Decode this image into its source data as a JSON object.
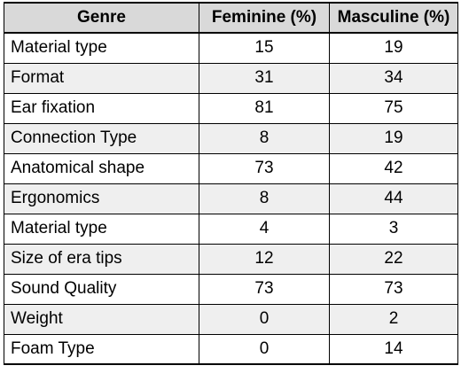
{
  "chart_data": {
    "type": "table",
    "columns": [
      "Genre",
      "Feminine (%)",
      "Masculine (%)"
    ],
    "rows": [
      {
        "label": "Material type",
        "feminine": 15,
        "masculine": 19
      },
      {
        "label": "Format",
        "feminine": 31,
        "masculine": 34
      },
      {
        "label": "Ear fixation",
        "feminine": 81,
        "masculine": 75
      },
      {
        "label": "Connection Type",
        "feminine": 8,
        "masculine": 19
      },
      {
        "label": "Anatomical shape",
        "feminine": 73,
        "masculine": 42
      },
      {
        "label": "Ergonomics",
        "feminine": 8,
        "masculine": 44
      },
      {
        "label": "Material type",
        "feminine": 4,
        "masculine": 3
      },
      {
        "label": "Size of era tips",
        "feminine": 12,
        "masculine": 22
      },
      {
        "label": "Sound Quality",
        "feminine": 73,
        "masculine": 73
      },
      {
        "label": "Weight",
        "feminine": 0,
        "masculine": 2
      },
      {
        "label": "Foam Type",
        "feminine": 0,
        "masculine": 14
      }
    ],
    "colors": {
      "header_bg": "#d9d9d9",
      "row_alt_bg": "#efefef",
      "row_bg": "#ffffff",
      "border": "#000000"
    }
  }
}
